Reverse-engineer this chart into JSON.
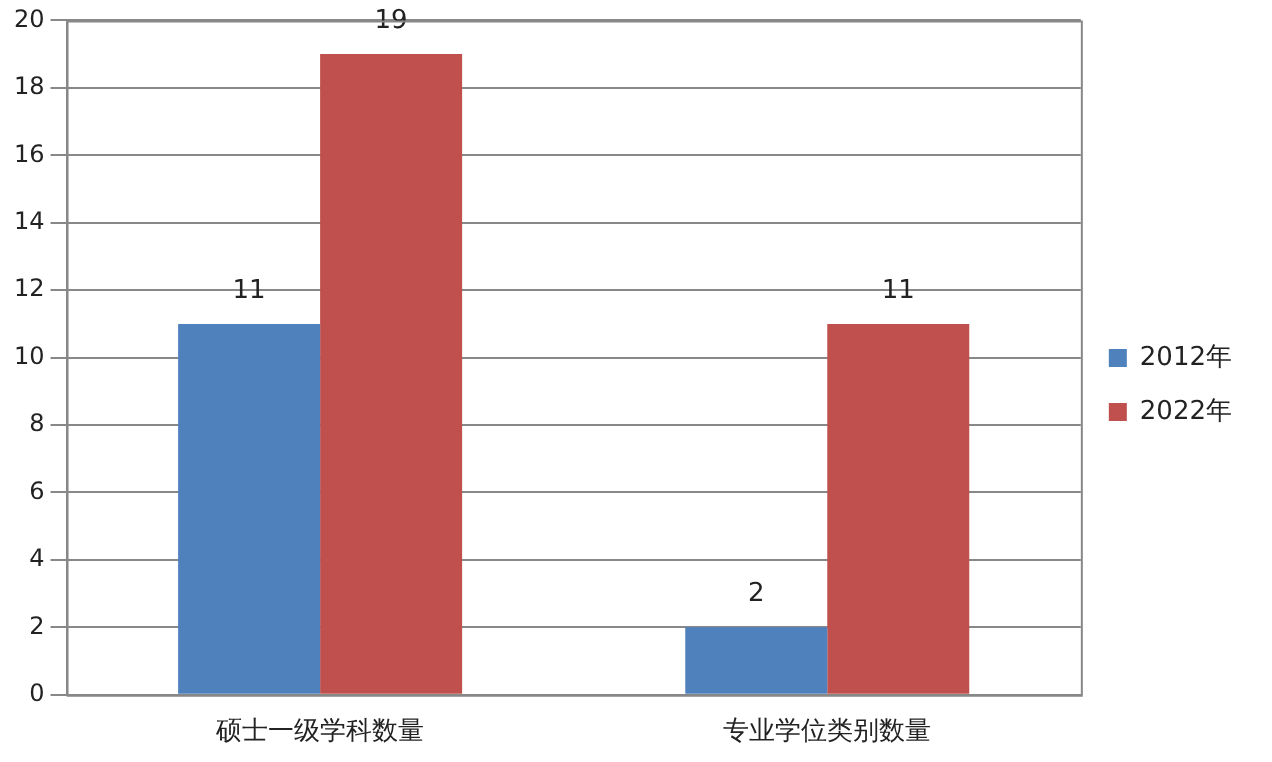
{
  "chart_data": {
    "type": "bar",
    "categories": [
      "硕士一级学科数量",
      "专业学位类别数量"
    ],
    "series": [
      {
        "name": "2012年",
        "color": "#4f81bd",
        "values": [
          11,
          2
        ]
      },
      {
        "name": "2022年",
        "color": "#c0504d",
        "values": [
          19,
          11
        ]
      }
    ],
    "ylim": [
      0,
      20
    ],
    "yticks": [
      0,
      2,
      4,
      6,
      8,
      10,
      12,
      14,
      16,
      18,
      20
    ],
    "grid": "y",
    "legend": "right",
    "data_labels": true
  }
}
